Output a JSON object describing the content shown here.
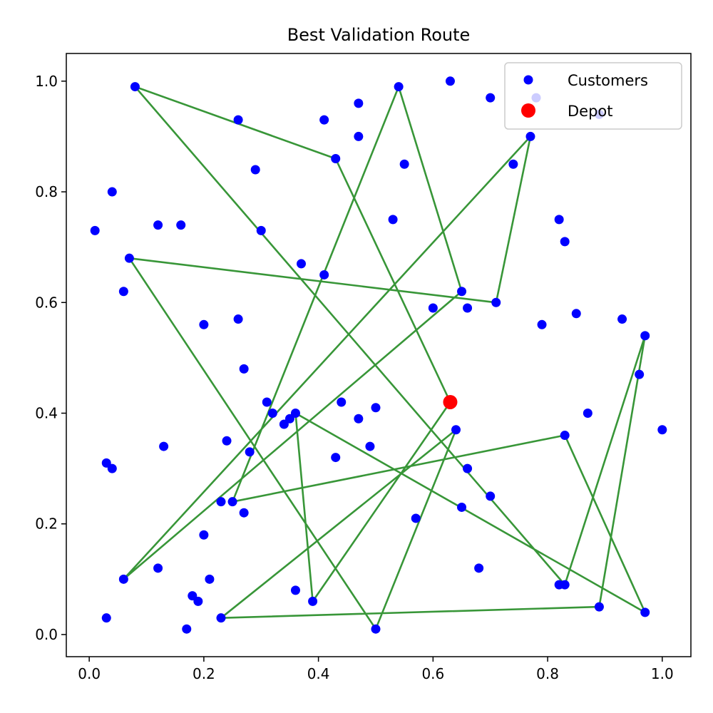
{
  "chart_data": {
    "type": "scatter",
    "title": "Best Validation Route",
    "xlabel": "",
    "ylabel": "",
    "xlim": [
      -0.04,
      1.05
    ],
    "ylim": [
      -0.04,
      1.05
    ],
    "xticks": [
      0.0,
      0.2,
      0.4,
      0.6,
      0.8,
      1.0
    ],
    "yticks": [
      0.0,
      0.2,
      0.4,
      0.6,
      0.8,
      1.0
    ],
    "xtick_labels": [
      "0.0",
      "0.2",
      "0.4",
      "0.6",
      "0.8",
      "1.0"
    ],
    "ytick_labels": [
      "0.0",
      "0.2",
      "0.4",
      "0.6",
      "0.8",
      "1.0"
    ],
    "grid": false,
    "legend_position": "top-right",
    "series": [
      {
        "name": "Customers",
        "kind": "scatter",
        "color": "#0000ff",
        "points": [
          [
            0.08,
            0.99
          ],
          [
            0.54,
            0.99
          ],
          [
            0.63,
            1.0
          ],
          [
            0.47,
            0.96
          ],
          [
            0.7,
            0.97
          ],
          [
            0.78,
            0.97
          ],
          [
            0.89,
            0.94
          ],
          [
            0.26,
            0.93
          ],
          [
            0.41,
            0.93
          ],
          [
            0.47,
            0.9
          ],
          [
            0.77,
            0.9
          ],
          [
            0.43,
            0.86
          ],
          [
            0.55,
            0.85
          ],
          [
            0.74,
            0.85
          ],
          [
            0.29,
            0.84
          ],
          [
            0.04,
            0.8
          ],
          [
            0.01,
            0.73
          ],
          [
            0.12,
            0.74
          ],
          [
            0.16,
            0.74
          ],
          [
            0.3,
            0.73
          ],
          [
            0.53,
            0.75
          ],
          [
            0.82,
            0.75
          ],
          [
            0.83,
            0.71
          ],
          [
            0.07,
            0.68
          ],
          [
            0.37,
            0.67
          ],
          [
            0.41,
            0.65
          ],
          [
            0.06,
            0.62
          ],
          [
            0.65,
            0.62
          ],
          [
            0.71,
            0.6
          ],
          [
            0.6,
            0.59
          ],
          [
            0.66,
            0.59
          ],
          [
            0.85,
            0.58
          ],
          [
            0.2,
            0.56
          ],
          [
            0.26,
            0.57
          ],
          [
            0.79,
            0.56
          ],
          [
            0.93,
            0.57
          ],
          [
            0.97,
            0.54
          ],
          [
            0.27,
            0.48
          ],
          [
            0.96,
            0.47
          ],
          [
            0.31,
            0.42
          ],
          [
            0.44,
            0.42
          ],
          [
            0.5,
            0.41
          ],
          [
            0.32,
            0.4
          ],
          [
            0.36,
            0.4
          ],
          [
            0.35,
            0.39
          ],
          [
            0.47,
            0.39
          ],
          [
            0.34,
            0.38
          ],
          [
            0.87,
            0.4
          ],
          [
            0.64,
            0.37
          ],
          [
            1.0,
            0.37
          ],
          [
            0.24,
            0.35
          ],
          [
            0.83,
            0.36
          ],
          [
            0.13,
            0.34
          ],
          [
            0.28,
            0.33
          ],
          [
            0.49,
            0.34
          ],
          [
            0.43,
            0.32
          ],
          [
            0.03,
            0.31
          ],
          [
            0.04,
            0.3
          ],
          [
            0.66,
            0.3
          ],
          [
            0.7,
            0.25
          ],
          [
            0.23,
            0.24
          ],
          [
            0.25,
            0.24
          ],
          [
            0.65,
            0.23
          ],
          [
            0.27,
            0.22
          ],
          [
            0.57,
            0.21
          ],
          [
            0.2,
            0.18
          ],
          [
            0.12,
            0.12
          ],
          [
            0.68,
            0.12
          ],
          [
            0.06,
            0.1
          ],
          [
            0.21,
            0.1
          ],
          [
            0.82,
            0.09
          ],
          [
            0.83,
            0.09
          ],
          [
            0.36,
            0.08
          ],
          [
            0.18,
            0.07
          ],
          [
            0.19,
            0.06
          ],
          [
            0.39,
            0.06
          ],
          [
            0.89,
            0.05
          ],
          [
            0.97,
            0.04
          ],
          [
            0.03,
            0.03
          ],
          [
            0.23,
            0.03
          ],
          [
            0.17,
            0.01
          ],
          [
            0.5,
            0.01
          ]
        ]
      },
      {
        "name": "Depot",
        "kind": "scatter",
        "color": "#ff0000",
        "points": [
          [
            0.63,
            0.42
          ]
        ]
      }
    ],
    "routes": [
      {
        "color": "#228b22",
        "points": [
          [
            0.63,
            0.42
          ],
          [
            0.43,
            0.86
          ],
          [
            0.08,
            0.99
          ],
          [
            0.83,
            0.09
          ],
          [
            0.97,
            0.54
          ],
          [
            0.89,
            0.05
          ],
          [
            0.23,
            0.03
          ],
          [
            0.64,
            0.37
          ],
          [
            0.5,
            0.01
          ],
          [
            0.07,
            0.68
          ],
          [
            0.71,
            0.6
          ],
          [
            0.77,
            0.9
          ],
          [
            0.06,
            0.1
          ],
          [
            0.65,
            0.62
          ],
          [
            0.54,
            0.99
          ],
          [
            0.25,
            0.24
          ],
          [
            0.83,
            0.36
          ],
          [
            0.97,
            0.04
          ],
          [
            0.36,
            0.4
          ],
          [
            0.39,
            0.06
          ],
          [
            0.63,
            0.42
          ]
        ]
      }
    ]
  }
}
